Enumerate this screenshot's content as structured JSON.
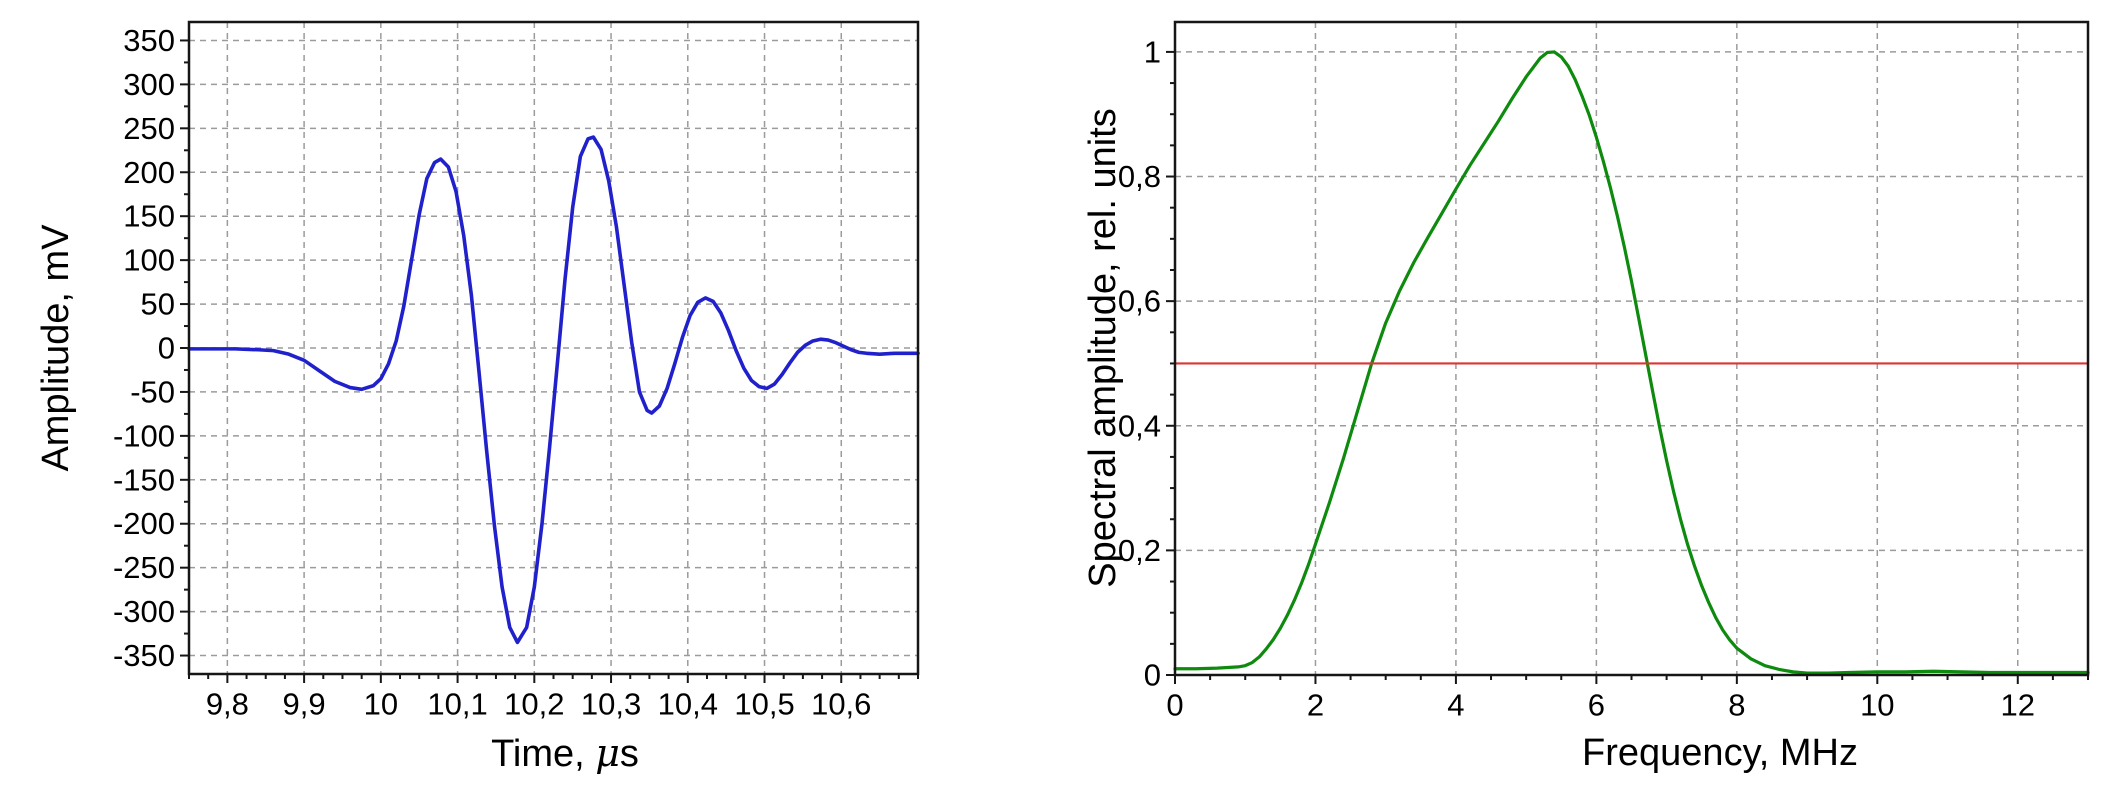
{
  "figure": {
    "background": "#ffffff",
    "description": "Two-panel scientific figure: ultrasonic pulse waveform and its normalized spectrum"
  },
  "chart_data": [
    {
      "id": "time-domain",
      "type": "line",
      "title": "",
      "xlabel": {
        "text": "Time, μs",
        "prefix": "Time, ",
        "mu": "μ",
        "suffix": "s"
      },
      "ylabel": "Amplitude, mV",
      "xlim": [
        9.75,
        10.7
      ],
      "ylim": [
        -371,
        371
      ],
      "grid": "dashed",
      "legend_position": "none",
      "x_major_ticks": [
        9.8,
        9.9,
        10,
        10.1,
        10.2,
        10.3,
        10.4,
        10.5,
        10.6
      ],
      "x_tick_labels": [
        "9,8",
        "9,9",
        "10",
        "10,1",
        "10,2",
        "10,3",
        "10,4",
        "10,5",
        "10,6"
      ],
      "x_minor_step": 0.025,
      "y_major_ticks": [
        -350,
        -300,
        -250,
        -200,
        -150,
        -100,
        -50,
        0,
        50,
        100,
        150,
        200,
        250,
        300,
        350
      ],
      "y_tick_labels": [
        "-350",
        "-300",
        "-250",
        "-200",
        "-150",
        "-100",
        "-50",
        "0",
        "50",
        "100",
        "150",
        "200",
        "250",
        "300",
        "350"
      ],
      "y_minor_step": 25,
      "colors": {
        "grid": "#9b9b9b",
        "frame": "#161616",
        "text": "#000000"
      },
      "series": [
        {
          "name": "pulse-waveform",
          "color": "#2121cc",
          "width": 3.6,
          "points": [
            [
              9.75,
              -1
            ],
            [
              9.78,
              -1
            ],
            [
              9.81,
              -1
            ],
            [
              9.84,
              -2
            ],
            [
              9.86,
              -3
            ],
            [
              9.88,
              -7
            ],
            [
              9.9,
              -14
            ],
            [
              9.92,
              -26
            ],
            [
              9.94,
              -38
            ],
            [
              9.96,
              -45
            ],
            [
              9.975,
              -47
            ],
            [
              9.99,
              -43
            ],
            [
              10.0,
              -35
            ],
            [
              10.01,
              -18
            ],
            [
              10.02,
              8
            ],
            [
              10.03,
              48
            ],
            [
              10.04,
              100
            ],
            [
              10.05,
              152
            ],
            [
              10.06,
              193
            ],
            [
              10.07,
              211
            ],
            [
              10.078,
              215
            ],
            [
              10.088,
              206
            ],
            [
              10.098,
              178
            ],
            [
              10.108,
              128
            ],
            [
              10.118,
              60
            ],
            [
              10.128,
              -28
            ],
            [
              10.138,
              -118
            ],
            [
              10.148,
              -202
            ],
            [
              10.158,
              -272
            ],
            [
              10.168,
              -318
            ],
            [
              10.178,
              -335
            ],
            [
              10.19,
              -318
            ],
            [
              10.2,
              -272
            ],
            [
              10.21,
              -200
            ],
            [
              10.22,
              -112
            ],
            [
              10.23,
              -18
            ],
            [
              10.24,
              78
            ],
            [
              10.25,
              160
            ],
            [
              10.26,
              218
            ],
            [
              10.27,
              238
            ],
            [
              10.277,
              240
            ],
            [
              10.287,
              226
            ],
            [
              10.297,
              190
            ],
            [
              10.307,
              138
            ],
            [
              10.317,
              72
            ],
            [
              10.327,
              6
            ],
            [
              10.337,
              -50
            ],
            [
              10.347,
              -71
            ],
            [
              10.353,
              -74
            ],
            [
              10.363,
              -66
            ],
            [
              10.373,
              -46
            ],
            [
              10.383,
              -18
            ],
            [
              10.393,
              12
            ],
            [
              10.403,
              37
            ],
            [
              10.413,
              52
            ],
            [
              10.423,
              57
            ],
            [
              10.433,
              53
            ],
            [
              10.443,
              40
            ],
            [
              10.453,
              20
            ],
            [
              10.463,
              -3
            ],
            [
              10.473,
              -23
            ],
            [
              10.483,
              -37
            ],
            [
              10.493,
              -44
            ],
            [
              10.503,
              -46
            ],
            [
              10.513,
              -41
            ],
            [
              10.523,
              -30
            ],
            [
              10.533,
              -17
            ],
            [
              10.543,
              -5
            ],
            [
              10.553,
              3
            ],
            [
              10.563,
              8
            ],
            [
              10.573,
              10
            ],
            [
              10.583,
              9
            ],
            [
              10.593,
              6
            ],
            [
              10.603,
              2
            ],
            [
              10.613,
              -2
            ],
            [
              10.623,
              -5
            ],
            [
              10.633,
              -6
            ],
            [
              10.65,
              -7
            ],
            [
              10.67,
              -6
            ],
            [
              10.7,
              -6
            ]
          ]
        }
      ]
    },
    {
      "id": "spectrum",
      "type": "line",
      "title": "",
      "xlabel": {
        "text": "Frequency, MHz"
      },
      "ylabel": "Spectral amplitude, rel. units",
      "xlim": [
        0,
        13
      ],
      "ylim": [
        0,
        1.048
      ],
      "grid": "dashed",
      "legend_position": "none",
      "x_major_ticks": [
        0,
        2,
        4,
        6,
        8,
        10,
        12
      ],
      "x_tick_labels": [
        "0",
        "2",
        "4",
        "6",
        "8",
        "10",
        "12"
      ],
      "x_minor_step": 0.5,
      "y_major_ticks": [
        0,
        0.2,
        0.4,
        0.6,
        0.8,
        1
      ],
      "y_tick_labels": [
        "0",
        "0,2",
        "0,4",
        "0,6",
        "0,8",
        "1"
      ],
      "y_minor_step": 0.05,
      "colors": {
        "grid": "#9b9b9b",
        "frame": "#161616",
        "text": "#000000"
      },
      "half_level": 0.5,
      "series": [
        {
          "name": "spectral-amplitude",
          "color": "#0e8a0e",
          "width": 3.2,
          "points": [
            [
              0,
              0.01
            ],
            [
              0.3,
              0.01
            ],
            [
              0.6,
              0.011
            ],
            [
              0.9,
              0.013
            ],
            [
              1.0,
              0.015
            ],
            [
              1.1,
              0.02
            ],
            [
              1.2,
              0.029
            ],
            [
              1.3,
              0.042
            ],
            [
              1.4,
              0.057
            ],
            [
              1.5,
              0.075
            ],
            [
              1.6,
              0.096
            ],
            [
              1.7,
              0.12
            ],
            [
              1.8,
              0.147
            ],
            [
              1.9,
              0.177
            ],
            [
              2.0,
              0.21
            ],
            [
              2.2,
              0.277
            ],
            [
              2.4,
              0.348
            ],
            [
              2.6,
              0.424
            ],
            [
              2.8,
              0.5
            ],
            [
              3.0,
              0.565
            ],
            [
              3.2,
              0.617
            ],
            [
              3.4,
              0.662
            ],
            [
              3.6,
              0.702
            ],
            [
              3.8,
              0.741
            ],
            [
              4.0,
              0.78
            ],
            [
              4.2,
              0.818
            ],
            [
              4.4,
              0.853
            ],
            [
              4.6,
              0.888
            ],
            [
              4.8,
              0.925
            ],
            [
              5.0,
              0.96
            ],
            [
              5.1,
              0.975
            ],
            [
              5.2,
              0.99
            ],
            [
              5.3,
              0.999
            ],
            [
              5.4,
              1.0
            ],
            [
              5.5,
              0.992
            ],
            [
              5.6,
              0.977
            ],
            [
              5.7,
              0.955
            ],
            [
              5.8,
              0.928
            ],
            [
              5.9,
              0.898
            ],
            [
              6.0,
              0.863
            ],
            [
              6.1,
              0.824
            ],
            [
              6.2,
              0.782
            ],
            [
              6.3,
              0.736
            ],
            [
              6.4,
              0.686
            ],
            [
              6.5,
              0.632
            ],
            [
              6.6,
              0.574
            ],
            [
              6.7,
              0.515
            ],
            [
              6.8,
              0.456
            ],
            [
              6.9,
              0.398
            ],
            [
              7.0,
              0.344
            ],
            [
              7.1,
              0.294
            ],
            [
              7.2,
              0.249
            ],
            [
              7.3,
              0.209
            ],
            [
              7.4,
              0.174
            ],
            [
              7.5,
              0.143
            ],
            [
              7.6,
              0.116
            ],
            [
              7.7,
              0.092
            ],
            [
              7.8,
              0.072
            ],
            [
              7.9,
              0.056
            ],
            [
              8.0,
              0.043
            ],
            [
              8.2,
              0.026
            ],
            [
              8.4,
              0.015
            ],
            [
              8.6,
              0.009
            ],
            [
              8.8,
              0.005
            ],
            [
              9.0,
              0.003
            ],
            [
              9.3,
              0.003
            ],
            [
              9.6,
              0.004
            ],
            [
              10.0,
              0.005
            ],
            [
              10.4,
              0.005
            ],
            [
              10.8,
              0.006
            ],
            [
              11.2,
              0.005
            ],
            [
              11.6,
              0.004
            ],
            [
              12.0,
              0.004
            ],
            [
              12.5,
              0.004
            ],
            [
              13.0,
              0.004
            ]
          ]
        },
        {
          "name": "half-level-line",
          "color": "#dc3535",
          "width": 2.2,
          "points": [
            [
              0,
              0.5
            ],
            [
              13,
              0.5
            ]
          ]
        }
      ]
    }
  ]
}
